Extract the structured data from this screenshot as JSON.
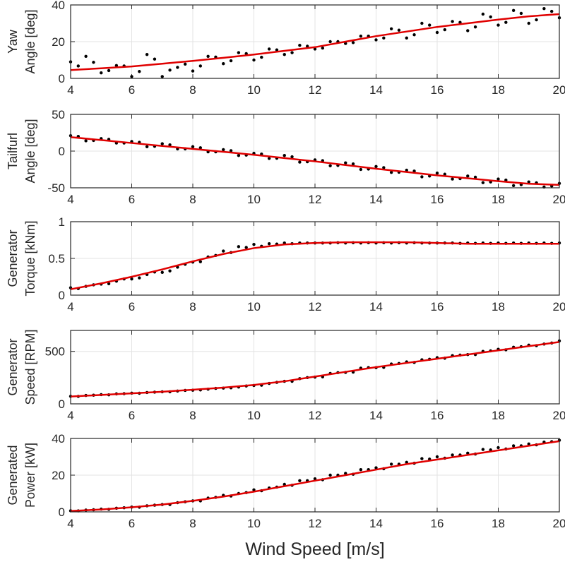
{
  "chart_data": {
    "type": "scatter",
    "xlabel": "Wind Speed [m/s]",
    "xlim": [
      4,
      20
    ],
    "xticks": [
      4,
      6,
      8,
      10,
      12,
      14,
      16,
      18,
      20
    ],
    "grid": true,
    "colors": {
      "points": "#000000",
      "fit": "#e00000",
      "axes": "#262626",
      "grid": "#e3e3e3"
    },
    "fit_x": [
      4,
      5,
      6,
      7,
      8,
      9,
      10,
      11,
      12,
      13,
      14,
      15,
      16,
      17,
      18,
      19,
      20
    ],
    "scatter_x": [
      4,
      4.5,
      5,
      5.5,
      6,
      6.5,
      7,
      7.5,
      8,
      8.5,
      9,
      9.5,
      10,
      10.5,
      11,
      11.5,
      12,
      12.5,
      13,
      13.5,
      14,
      14.5,
      15,
      15.5,
      16,
      16.5,
      17,
      17.5,
      18,
      18.5,
      19,
      19.5,
      20
    ],
    "subplots": [
      {
        "ylabel": [
          "Yaw",
          "Angle [deg]"
        ],
        "ylim": [
          0,
          40
        ],
        "yticks": [
          0,
          20,
          40
        ],
        "fit": [
          4.5,
          5.5,
          6.5,
          8,
          9.5,
          11.2,
          13,
          15,
          17,
          20,
          23,
          25.5,
          28,
          30,
          32,
          33.8,
          35
        ],
        "scatter": [
          9,
          12,
          3,
          7,
          1,
          13,
          1,
          6,
          4,
          12,
          8,
          14,
          10,
          16,
          13,
          18,
          16,
          20,
          19,
          23,
          21,
          27,
          22,
          30,
          25,
          31,
          26,
          35,
          29,
          37,
          30,
          38,
          33
        ]
      },
      {
        "ylabel": [
          "Tailfurl",
          "Angle [deg]"
        ],
        "ylim": [
          -50,
          50
        ],
        "yticks": [
          -50,
          0,
          50
        ],
        "fit": [
          19,
          15,
          11,
          7,
          3,
          -1,
          -5,
          -9.5,
          -14,
          -19,
          -24,
          -28.5,
          -33,
          -37,
          -41,
          -44.5,
          -46
        ],
        "scatter": [
          21,
          14,
          17,
          11,
          13,
          6,
          10,
          3,
          6,
          -1,
          2,
          -6,
          -3,
          -10,
          -6,
          -15,
          -12,
          -20,
          -16,
          -25,
          -21,
          -29,
          -26,
          -35,
          -30,
          -38,
          -34,
          -43,
          -38,
          -47,
          -42,
          -49,
          -44
        ]
      },
      {
        "ylabel": [
          "Generator",
          "Torque [kNm]"
        ],
        "ylim": [
          0,
          1
        ],
        "yticks": [
          0,
          0.5,
          1
        ],
        "fit": [
          0.08,
          0.16,
          0.25,
          0.35,
          0.46,
          0.56,
          0.64,
          0.69,
          0.71,
          0.72,
          0.72,
          0.72,
          0.71,
          0.7,
          0.7,
          0.7,
          0.7
        ],
        "scatter": [
          0.1,
          0.12,
          0.15,
          0.19,
          0.22,
          0.28,
          0.31,
          0.38,
          0.45,
          0.52,
          0.6,
          0.66,
          0.69,
          0.7,
          0.71,
          0.71,
          0.71,
          0.71,
          0.71,
          0.71,
          0.71,
          0.71,
          0.71,
          0.71,
          0.71,
          0.71,
          0.71,
          0.71,
          0.71,
          0.71,
          0.71,
          0.71,
          0.71
        ]
      },
      {
        "ylabel": [
          "Generator",
          "Speed [RPM]"
        ],
        "ylim": [
          0,
          700
        ],
        "yticks": [
          0,
          500
        ],
        "fit": [
          70,
          85,
          100,
          115,
          135,
          155,
          180,
          215,
          260,
          305,
          350,
          390,
          430,
          470,
          510,
          550,
          590
        ],
        "scatter": [
          72,
          80,
          88,
          95,
          102,
          108,
          115,
          122,
          130,
          140,
          150,
          160,
          175,
          195,
          215,
          240,
          255,
          290,
          300,
          340,
          345,
          380,
          400,
          420,
          440,
          460,
          470,
          500,
          520,
          540,
          560,
          570,
          600
        ]
      },
      {
        "ylabel": [
          "Generated",
          "Power [kW]"
        ],
        "ylim": [
          0,
          40
        ],
        "yticks": [
          0,
          20,
          40
        ],
        "fit": [
          0.5,
          1.3,
          2.5,
          4,
          6,
          8.3,
          11,
          14,
          17,
          20,
          23,
          26,
          28.5,
          31,
          33.5,
          36,
          38.5
        ],
        "scatter": [
          0.6,
          1,
          1.5,
          2,
          2.6,
          3.3,
          4,
          5,
          6,
          7.5,
          9,
          10,
          12,
          13,
          15,
          17,
          18,
          20,
          21,
          23,
          24,
          26,
          27,
          29,
          30,
          31,
          32,
          34,
          35,
          36,
          37,
          38,
          39
        ]
      }
    ]
  }
}
